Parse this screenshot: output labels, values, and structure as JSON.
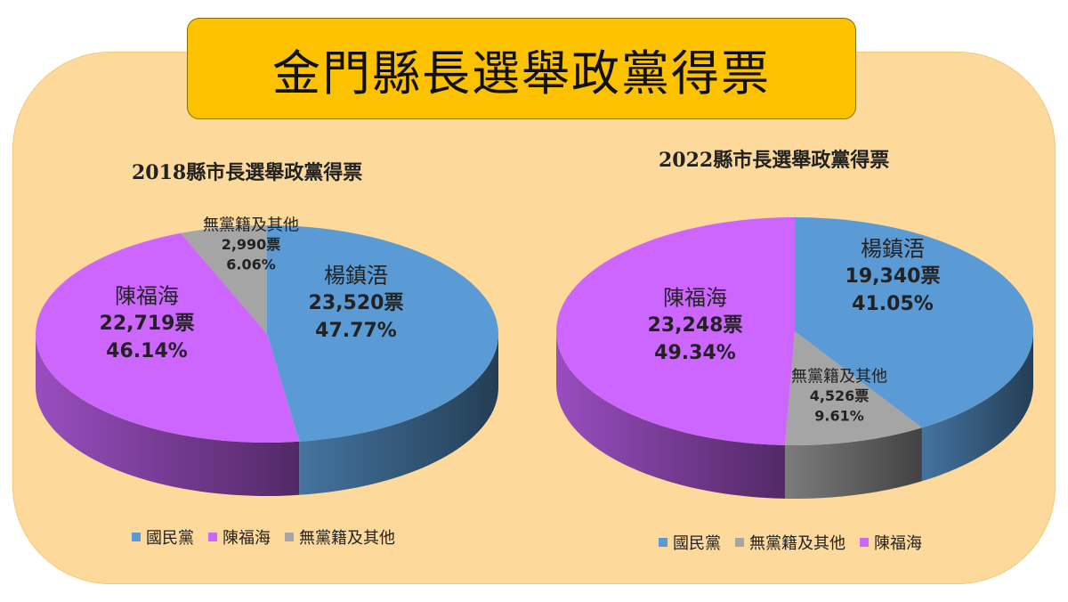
{
  "page_title": "金門縣長選舉政黨得票",
  "colors": {
    "kmt": "#5b9bd5",
    "chen": "#cc66ff",
    "other": "#a5a5a5",
    "panel": "#fdd99b",
    "banner": "#fcc200"
  },
  "chart_data": [
    {
      "type": "pie",
      "title": "2018縣市長選舉政黨得票",
      "slices": [
        {
          "key": "kmt",
          "name": "楊鎮浯",
          "votes": 23520,
          "votes_label": "23,520票",
          "percent": 47.77,
          "percent_label": "47.77%"
        },
        {
          "key": "chen",
          "name": "陳福海",
          "votes": 22719,
          "votes_label": "22,719票",
          "percent": 46.14,
          "percent_label": "46.14%"
        },
        {
          "key": "other",
          "name": "無黨籍及其他",
          "votes": 2990,
          "votes_label": "2,990票",
          "percent": 6.06,
          "percent_label": "6.06%"
        }
      ],
      "legend": [
        {
          "key": "kmt",
          "label": "國民黨"
        },
        {
          "key": "chen",
          "label": "陳福海"
        },
        {
          "key": "other",
          "label": "無黨籍及其他"
        }
      ]
    },
    {
      "type": "pie",
      "title": "2022縣市長選舉政黨得票",
      "slices": [
        {
          "key": "kmt",
          "name": "楊鎮浯",
          "votes": 19340,
          "votes_label": "19,340票",
          "percent": 41.05,
          "percent_label": "41.05%"
        },
        {
          "key": "other",
          "name": "無黨籍及其他",
          "votes": 4526,
          "votes_label": "4,526票",
          "percent": 9.61,
          "percent_label": "9.61%"
        },
        {
          "key": "chen",
          "name": "陳福海",
          "votes": 23248,
          "votes_label": "23,248票",
          "percent": 49.34,
          "percent_label": "49.34%"
        }
      ],
      "legend": [
        {
          "key": "kmt",
          "label": "國民黨"
        },
        {
          "key": "other",
          "label": "無黨籍及其他"
        },
        {
          "key": "chen",
          "label": "陳福海"
        }
      ]
    }
  ]
}
